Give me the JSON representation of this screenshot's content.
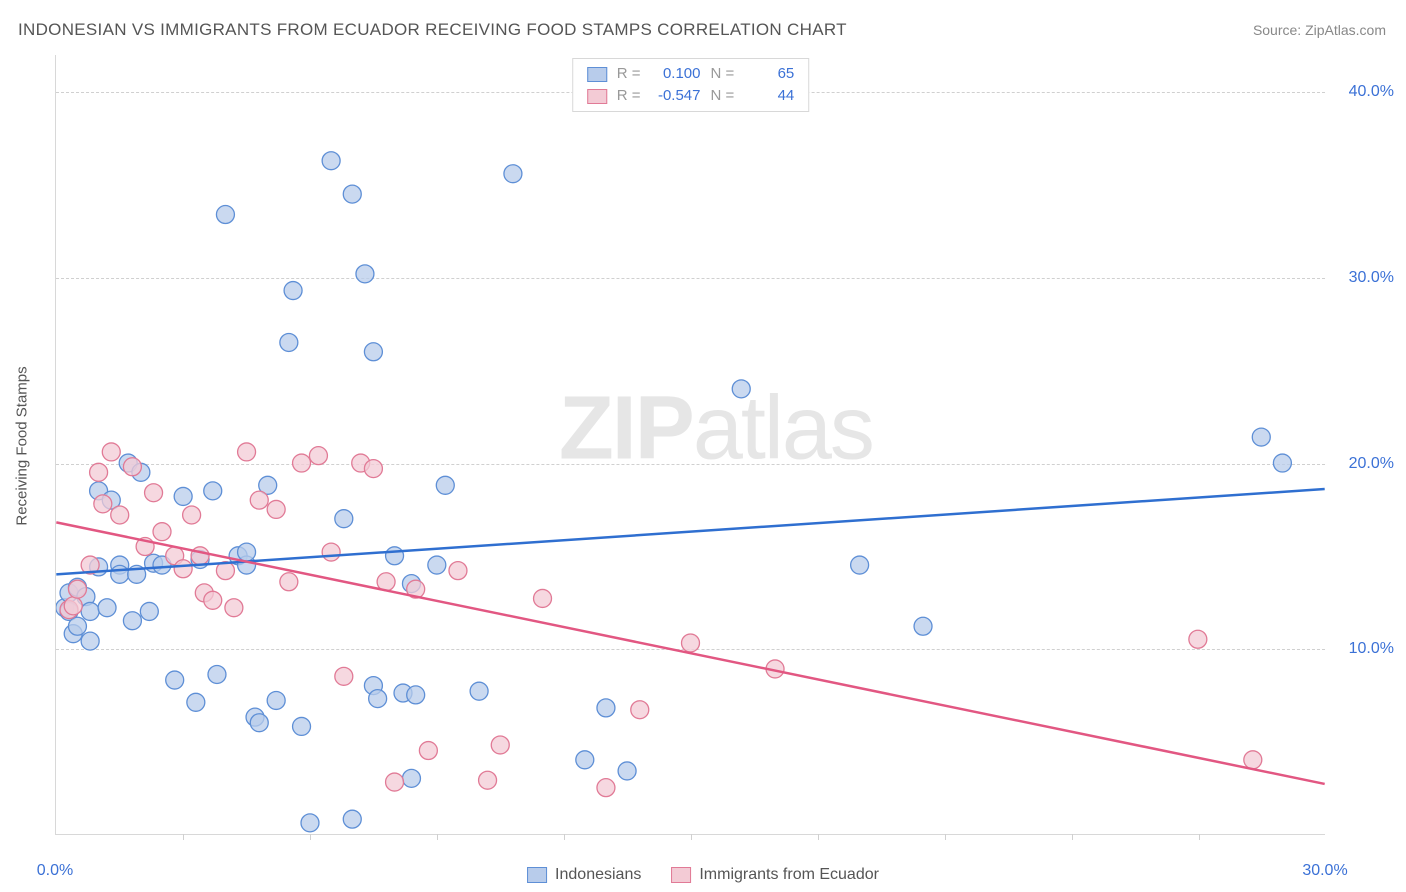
{
  "title": "INDONESIAN VS IMMIGRANTS FROM ECUADOR RECEIVING FOOD STAMPS CORRELATION CHART",
  "source": "Source: ZipAtlas.com",
  "y_axis_label": "Receiving Food Stamps",
  "watermark_prefix": "ZIP",
  "watermark_suffix": "atlas",
  "chart": {
    "type": "scatter",
    "xlim": [
      0,
      30
    ],
    "ylim": [
      0,
      42
    ],
    "x_ticks": [
      0,
      30
    ],
    "x_tick_labels": [
      "0.0%",
      "30.0%"
    ],
    "x_minor_ticks": [
      3,
      6,
      9,
      12,
      15,
      18,
      21,
      24,
      27
    ],
    "y_ticks": [
      10,
      20,
      30,
      40
    ],
    "y_tick_labels": [
      "10.0%",
      "20.0%",
      "30.0%",
      "40.0%"
    ],
    "grid_color": "#d0d0d0",
    "background_color": "#ffffff",
    "series": [
      {
        "name": "Indonesians",
        "key": "indonesians",
        "marker_fill": "#b8cceb",
        "marker_stroke": "#5e8fd6",
        "line_color": "#2f6fd0",
        "marker_radius": 9,
        "stats": {
          "R_label": "R =",
          "R": "0.100",
          "N_label": "N =",
          "N": "65"
        },
        "trend": {
          "x1": 0,
          "y1": 14.0,
          "x2": 30,
          "y2": 18.6
        },
        "points": [
          [
            0.2,
            12.2
          ],
          [
            0.3,
            13.0
          ],
          [
            0.3,
            12.0
          ],
          [
            0.4,
            10.8
          ],
          [
            0.5,
            13.3
          ],
          [
            0.5,
            11.2
          ],
          [
            0.7,
            12.8
          ],
          [
            0.8,
            10.4
          ],
          [
            0.8,
            12.0
          ],
          [
            1.0,
            18.5
          ],
          [
            1.0,
            14.4
          ],
          [
            1.2,
            12.2
          ],
          [
            1.3,
            18.0
          ],
          [
            1.5,
            14.5
          ],
          [
            1.5,
            14.0
          ],
          [
            1.7,
            20.0
          ],
          [
            1.8,
            11.5
          ],
          [
            1.9,
            14.0
          ],
          [
            2.0,
            19.5
          ],
          [
            2.2,
            12.0
          ],
          [
            2.3,
            14.6
          ],
          [
            2.5,
            14.5
          ],
          [
            2.8,
            8.3
          ],
          [
            3.0,
            18.2
          ],
          [
            3.3,
            7.1
          ],
          [
            3.4,
            14.8
          ],
          [
            3.7,
            18.5
          ],
          [
            3.8,
            8.6
          ],
          [
            4.0,
            33.4
          ],
          [
            4.3,
            15.0
          ],
          [
            4.5,
            14.5
          ],
          [
            4.5,
            15.2
          ],
          [
            4.7,
            6.3
          ],
          [
            4.8,
            6.0
          ],
          [
            5.0,
            18.8
          ],
          [
            5.2,
            7.2
          ],
          [
            5.5,
            26.5
          ],
          [
            5.6,
            29.3
          ],
          [
            5.8,
            5.8
          ],
          [
            6.0,
            0.6
          ],
          [
            6.5,
            36.3
          ],
          [
            6.8,
            17.0
          ],
          [
            7.0,
            34.5
          ],
          [
            7.0,
            0.8
          ],
          [
            7.3,
            30.2
          ],
          [
            7.5,
            8.0
          ],
          [
            7.5,
            26.0
          ],
          [
            7.6,
            7.3
          ],
          [
            8.0,
            15.0
          ],
          [
            8.2,
            7.6
          ],
          [
            8.4,
            13.5
          ],
          [
            8.4,
            3.0
          ],
          [
            8.5,
            7.5
          ],
          [
            9.0,
            14.5
          ],
          [
            9.2,
            18.8
          ],
          [
            10.0,
            7.7
          ],
          [
            10.8,
            35.6
          ],
          [
            12.5,
            4.0
          ],
          [
            13.0,
            6.8
          ],
          [
            13.5,
            3.4
          ],
          [
            16.2,
            24.0
          ],
          [
            19.0,
            14.5
          ],
          [
            20.5,
            11.2
          ],
          [
            28.5,
            21.4
          ],
          [
            29.0,
            20.0
          ]
        ]
      },
      {
        "name": "Immigrants from Ecuador",
        "key": "ecuador",
        "marker_fill": "#f3cbd5",
        "marker_stroke": "#e17a96",
        "line_color": "#e25782",
        "marker_radius": 9,
        "stats": {
          "R_label": "R =",
          "R": "-0.547",
          "N_label": "N =",
          "N": "44"
        },
        "trend": {
          "x1": 0,
          "y1": 16.8,
          "x2": 30,
          "y2": 2.7
        },
        "points": [
          [
            0.3,
            12.1
          ],
          [
            0.4,
            12.3
          ],
          [
            0.5,
            13.2
          ],
          [
            0.8,
            14.5
          ],
          [
            1.0,
            19.5
          ],
          [
            1.1,
            17.8
          ],
          [
            1.3,
            20.6
          ],
          [
            1.5,
            17.2
          ],
          [
            1.8,
            19.8
          ],
          [
            2.1,
            15.5
          ],
          [
            2.3,
            18.4
          ],
          [
            2.5,
            16.3
          ],
          [
            2.8,
            15.0
          ],
          [
            3.0,
            14.3
          ],
          [
            3.2,
            17.2
          ],
          [
            3.4,
            15.0
          ],
          [
            3.5,
            13.0
          ],
          [
            3.7,
            12.6
          ],
          [
            4.0,
            14.2
          ],
          [
            4.2,
            12.2
          ],
          [
            4.5,
            20.6
          ],
          [
            4.8,
            18.0
          ],
          [
            5.2,
            17.5
          ],
          [
            5.5,
            13.6
          ],
          [
            5.8,
            20.0
          ],
          [
            6.2,
            20.4
          ],
          [
            6.5,
            15.2
          ],
          [
            6.8,
            8.5
          ],
          [
            7.2,
            20.0
          ],
          [
            7.5,
            19.7
          ],
          [
            7.8,
            13.6
          ],
          [
            8.0,
            2.8
          ],
          [
            8.5,
            13.2
          ],
          [
            8.8,
            4.5
          ],
          [
            9.5,
            14.2
          ],
          [
            10.2,
            2.9
          ],
          [
            10.5,
            4.8
          ],
          [
            11.5,
            12.7
          ],
          [
            13.0,
            2.5
          ],
          [
            13.8,
            6.7
          ],
          [
            15.0,
            10.3
          ],
          [
            17.0,
            8.9
          ],
          [
            27.0,
            10.5
          ],
          [
            28.3,
            4.0
          ]
        ]
      }
    ]
  },
  "legend_bottom": [
    {
      "label": "Indonesians",
      "fill": "#b8cceb",
      "stroke": "#5e8fd6"
    },
    {
      "label": "Immigrants from Ecuador",
      "fill": "#f3cbd5",
      "stroke": "#e17a96"
    }
  ]
}
